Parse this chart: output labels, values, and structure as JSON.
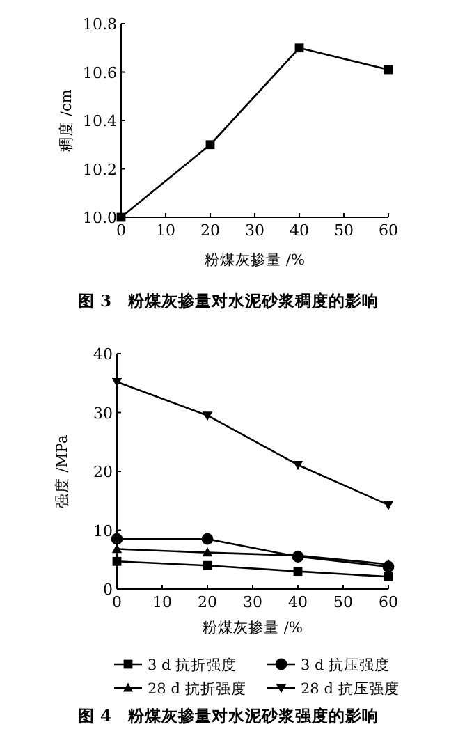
{
  "chart_data": [
    {
      "type": "line",
      "title": "图 3　粉煤灰掺量对水泥砂浆稠度的影响",
      "xlabel": "粉煤灰掺量 /%",
      "ylabel": "稠度 /cm",
      "x": [
        0,
        20,
        40,
        60
      ],
      "xlim": [
        0,
        60
      ],
      "xticks": [
        0,
        10,
        20,
        30,
        40,
        50,
        60
      ],
      "ylim": [
        10,
        10.8
      ],
      "yticks": [
        {
          "value": 10,
          "label": "10.0"
        },
        10.2,
        10.4,
        10.6,
        10.8
      ],
      "marker": "square",
      "grid": false,
      "legend": false,
      "series": [
        {
          "color": "#000000",
          "values": [
            10.0,
            10.3,
            10.7,
            10.61
          ]
        }
      ]
    },
    {
      "type": "line",
      "title": "图 4　粉煤灰掺量对水泥砂浆强度的影响",
      "xlabel": "粉煤灰掺量 /%",
      "ylabel": "强度 /MPa",
      "x": [
        0,
        20,
        40,
        60
      ],
      "xlim": [
        0,
        60
      ],
      "xticks": [
        0,
        10,
        20,
        30,
        40,
        50,
        60
      ],
      "ylim": [
        0,
        40
      ],
      "yticks": [
        0,
        10,
        20,
        30,
        40
      ],
      "grid": false,
      "legend": "bottom",
      "series": [
        {
          "name": "3 d 抗折强度",
          "color": "#000000",
          "marker": "square",
          "values": [
            4.7,
            4.0,
            3.0,
            2.1
          ]
        },
        {
          "name": "3 d 抗压强度",
          "color": "#000000",
          "marker": "circle",
          "values": [
            8.5,
            8.5,
            5.5,
            3.8
          ]
        },
        {
          "name": "28 d 抗折强度",
          "color": "#000000",
          "marker": "triangle",
          "values": [
            6.8,
            6.2,
            5.7,
            4.2
          ]
        },
        {
          "name": "28 d 抗压强度",
          "color": "#000000",
          "marker": "triangle-down",
          "values": [
            35.2,
            29.5,
            21.1,
            14.3
          ]
        }
      ]
    }
  ]
}
